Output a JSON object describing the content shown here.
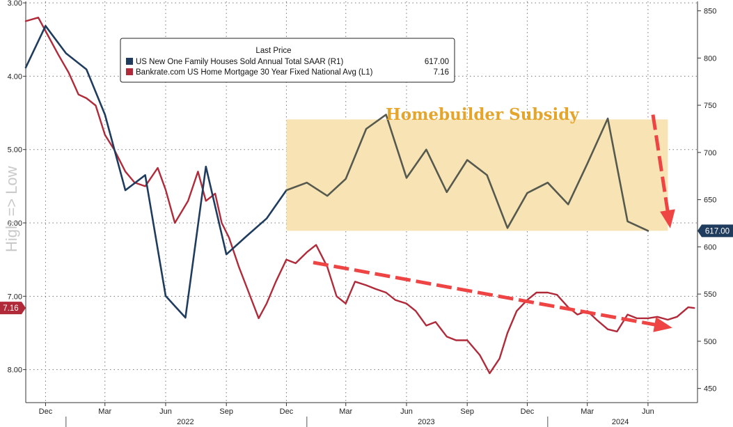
{
  "chart_data": {
    "type": "line",
    "title": "",
    "legend": {
      "title": "Last Price",
      "placement": "top-left",
      "entries": [
        {
          "label": "US New One Family Houses Sold Annual Total SAAR  (R1)",
          "value": "617.00",
          "color": "#1f3c5e"
        },
        {
          "label": "Bankrate.com US Home Mortgage 30 Year Fixed National Avg  (L1)",
          "value": "7.16",
          "color": "#b02a3a"
        }
      ]
    },
    "left_axis": {
      "label": "High => Low",
      "inverted": true,
      "range": [
        8.45,
        2.98
      ],
      "ticks": [
        "3.00",
        "4.00",
        "5.00",
        "6.00",
        "7.00",
        "8.00"
      ],
      "last_value_label": "7.16"
    },
    "right_axis": {
      "range": [
        435,
        860
      ],
      "ticks": [
        "850",
        "800",
        "750",
        "700",
        "650",
        "600",
        "550",
        "500",
        "450"
      ],
      "last_value_label": "617.00"
    },
    "x_axis": {
      "start": "2021-11-01",
      "end": "2024-08-15",
      "month_ticks": [
        {
          "label": "Dec",
          "date": "2021-12-01"
        },
        {
          "label": "Mar",
          "date": "2022-03-01"
        },
        {
          "label": "Jun",
          "date": "2022-06-01"
        },
        {
          "label": "Sep",
          "date": "2022-09-01"
        },
        {
          "label": "Dec",
          "date": "2022-12-01"
        },
        {
          "label": "Mar",
          "date": "2023-03-01"
        },
        {
          "label": "Jun",
          "date": "2023-06-01"
        },
        {
          "label": "Sep",
          "date": "2023-09-01"
        },
        {
          "label": "Dec",
          "date": "2023-12-01"
        },
        {
          "label": "Mar",
          "date": "2024-03-01"
        },
        {
          "label": "Jun",
          "date": "2024-06-01"
        }
      ],
      "year_ticks": [
        {
          "label": "2022",
          "date": "2022-07-01"
        },
        {
          "label": "2023",
          "date": "2023-07-01"
        },
        {
          "label": "2024",
          "date": "2024-04-20"
        }
      ]
    },
    "series": [
      {
        "name": "US New One Family Houses Sold Annual Total SAAR  (R1)",
        "axis": "right",
        "color": "#1f3c5e",
        "x": [
          "2021-11-01",
          "2021-12-01",
          "2022-01-01",
          "2022-02-01",
          "2022-03-01",
          "2022-04-01",
          "2022-05-01",
          "2022-06-01",
          "2022-07-01",
          "2022-08-01",
          "2022-09-01",
          "2022-10-01",
          "2022-11-01",
          "2022-12-01"
        ],
        "values": [
          790,
          834,
          805,
          788,
          740,
          660,
          676,
          548,
          525,
          685,
          592,
          611,
          630,
          660
        ]
      },
      {
        "name": "US New One Family Houses Sold Annual Total SAAR  (R1)",
        "axis": "right",
        "color": "#55594e",
        "x": [
          "2022-12-01",
          "2023-01-01",
          "2023-02-01",
          "2023-03-01",
          "2023-04-01",
          "2023-05-01",
          "2023-06-01",
          "2023-07-01",
          "2023-08-01",
          "2023-09-01",
          "2023-10-01",
          "2023-11-01",
          "2023-12-01",
          "2024-01-01",
          "2024-02-01",
          "2024-03-01",
          "2024-04-01",
          "2024-05-01",
          "2024-06-01"
        ],
        "values": [
          660,
          668,
          654,
          672,
          725,
          740,
          673,
          703,
          658,
          692,
          676,
          620,
          657,
          668,
          645,
          688,
          736,
          627,
          617
        ]
      },
      {
        "name": "Bankrate.com US Home Mortgage 30 Year Fixed National Avg  (L1)",
        "axis": "left",
        "color": "#b02a3a",
        "x": [
          "2021-11-01",
          "2021-11-20",
          "2021-12-05",
          "2021-12-20",
          "2022-01-05",
          "2022-01-20",
          "2022-02-01",
          "2022-02-15",
          "2022-03-01",
          "2022-03-15",
          "2022-04-01",
          "2022-04-15",
          "2022-05-01",
          "2022-05-20",
          "2022-06-01",
          "2022-06-15",
          "2022-06-25",
          "2022-07-05",
          "2022-07-20",
          "2022-08-01",
          "2022-08-15",
          "2022-08-25",
          "2022-09-05",
          "2022-09-20",
          "2022-10-05",
          "2022-10-20",
          "2022-11-01",
          "2022-11-15",
          "2022-12-01",
          "2022-12-15",
          "2023-01-01",
          "2023-01-15",
          "2023-02-01",
          "2023-02-15",
          "2023-03-01",
          "2023-03-15",
          "2023-04-01",
          "2023-04-15",
          "2023-05-01",
          "2023-05-15",
          "2023-06-01",
          "2023-06-15",
          "2023-07-01",
          "2023-07-15",
          "2023-08-01",
          "2023-08-15",
          "2023-09-01",
          "2023-09-20",
          "2023-10-05",
          "2023-10-20",
          "2023-11-01",
          "2023-11-15",
          "2023-12-01",
          "2023-12-15",
          "2024-01-01",
          "2024-01-15",
          "2024-02-01",
          "2024-02-15",
          "2024-03-01",
          "2024-03-15",
          "2024-04-01",
          "2024-04-15",
          "2024-05-01",
          "2024-05-15",
          "2024-06-01",
          "2024-06-15",
          "2024-07-01",
          "2024-07-15",
          "2024-08-01",
          "2024-08-10"
        ],
        "values": [
          3.25,
          3.2,
          3.45,
          3.7,
          3.95,
          4.25,
          4.3,
          4.4,
          4.8,
          5.0,
          5.3,
          5.45,
          5.5,
          5.25,
          5.55,
          6.0,
          5.85,
          5.7,
          5.3,
          5.7,
          5.6,
          6.0,
          6.2,
          6.6,
          6.95,
          7.3,
          7.1,
          6.8,
          6.5,
          6.55,
          6.4,
          6.3,
          6.6,
          7.0,
          7.1,
          6.8,
          6.85,
          6.9,
          6.95,
          7.05,
          7.1,
          7.2,
          7.4,
          7.35,
          7.55,
          7.6,
          7.6,
          7.8,
          8.05,
          7.85,
          7.5,
          7.2,
          7.05,
          6.95,
          6.95,
          6.98,
          7.15,
          7.25,
          7.2,
          7.32,
          7.45,
          7.48,
          7.25,
          7.3,
          7.3,
          7.28,
          7.32,
          7.28,
          7.15,
          7.16
        ]
      }
    ],
    "annotations": [
      {
        "text": "Homebuilder Subsidy",
        "color": "#e5a52b"
      }
    ],
    "colors": {
      "shaded_band": "#f8e3b4",
      "trend_arrow": "#ee4444"
    },
    "grid": true
  }
}
